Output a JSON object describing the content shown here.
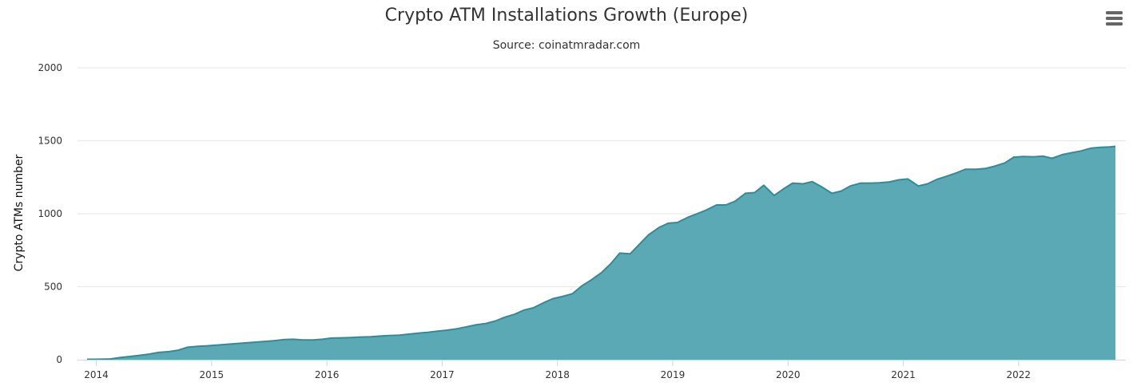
{
  "colors": {
    "area_fill": "#5ba9b5",
    "area_line": "#2f8c99",
    "grid": "#e6e6e6",
    "axis": "#ccd6eb",
    "menu": "#666666"
  },
  "menu": {
    "icon": "hamburger-menu-icon"
  },
  "chart_data": {
    "type": "area",
    "title": "Crypto ATM Installations Growth (Europe)",
    "subtitle": "Source: coinatmradar.com",
    "ylabel": "Crypto ATMs number",
    "xlabel": "",
    "ylim": [
      0,
      2000
    ],
    "xlim": [
      2013.92,
      2022.84
    ],
    "yticks": [
      0,
      500,
      1000,
      1500,
      2000
    ],
    "ytick_labels": [
      "0",
      "500",
      "1000",
      "1500",
      "2000"
    ],
    "xticks": [
      2014,
      2015,
      2016,
      2017,
      2018,
      2019,
      2020,
      2021,
      2022
    ],
    "xtick_labels": [
      "2014",
      "2015",
      "2016",
      "2017",
      "2018",
      "2019",
      "2020",
      "2021",
      "2022"
    ],
    "legend": "none",
    "grid": true,
    "series": [
      {
        "name": "Crypto ATMs number",
        "x": [
          2013.92,
          2014.0,
          2014.12,
          2014.21,
          2014.29,
          2014.38,
          2014.46,
          2014.54,
          2014.63,
          2014.71,
          2014.79,
          2014.88,
          2014.96,
          2015.04,
          2015.13,
          2015.21,
          2015.29,
          2015.38,
          2015.46,
          2015.54,
          2015.63,
          2015.71,
          2015.79,
          2015.88,
          2015.96,
          2016.04,
          2016.13,
          2016.21,
          2016.29,
          2016.38,
          2016.46,
          2016.54,
          2016.63,
          2016.71,
          2016.79,
          2016.88,
          2016.96,
          2017.04,
          2017.13,
          2017.21,
          2017.29,
          2017.38,
          2017.46,
          2017.54,
          2017.63,
          2017.71,
          2017.79,
          2017.88,
          2017.96,
          2018.04,
          2018.13,
          2018.21,
          2018.29,
          2018.38,
          2018.46,
          2018.54,
          2018.63,
          2018.71,
          2018.79,
          2018.88,
          2018.96,
          2019.04,
          2019.13,
          2019.21,
          2019.29,
          2019.38,
          2019.46,
          2019.54,
          2019.63,
          2019.71,
          2019.79,
          2019.88,
          2019.96,
          2020.04,
          2020.13,
          2020.21,
          2020.29,
          2020.38,
          2020.46,
          2020.54,
          2020.63,
          2020.71,
          2020.79,
          2020.88,
          2020.96,
          2021.04,
          2021.13,
          2021.21,
          2021.29,
          2021.38,
          2021.46,
          2021.54,
          2021.63,
          2021.71,
          2021.79,
          2021.88,
          2021.96,
          2022.04,
          2022.13,
          2022.21,
          2022.29,
          2022.38,
          2022.46,
          2022.54,
          2022.63,
          2022.71,
          2022.79,
          2022.84
        ],
        "values": [
          3,
          3,
          5,
          15,
          22,
          30,
          38,
          50,
          55,
          65,
          85,
          92,
          95,
          100,
          105,
          110,
          115,
          120,
          125,
          130,
          138,
          140,
          135,
          135,
          140,
          148,
          150,
          152,
          155,
          157,
          162,
          165,
          168,
          175,
          182,
          188,
          195,
          202,
          212,
          225,
          238,
          248,
          265,
          290,
          312,
          340,
          355,
          390,
          418,
          432,
          452,
          505,
          545,
          595,
          655,
          730,
          725,
          790,
          855,
          905,
          935,
          940,
          975,
          1000,
          1025,
          1060,
          1060,
          1085,
          1140,
          1145,
          1195,
          1125,
          1170,
          1210,
          1205,
          1220,
          1185,
          1140,
          1155,
          1190,
          1210,
          1210,
          1212,
          1218,
          1232,
          1238,
          1190,
          1205,
          1235,
          1258,
          1280,
          1305,
          1305,
          1310,
          1325,
          1348,
          1388,
          1392,
          1390,
          1395,
          1380,
          1405,
          1418,
          1430,
          1450,
          1455,
          1458,
          1462
        ]
      }
    ]
  }
}
